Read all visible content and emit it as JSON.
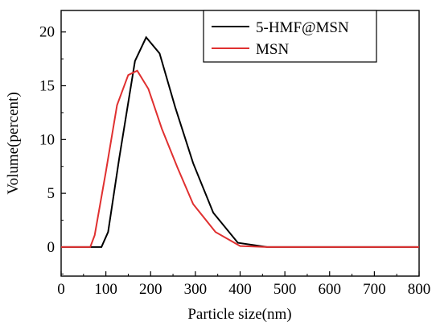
{
  "chart_data": {
    "type": "line",
    "xlabel": "Particle size(nm)",
    "ylabel": "Volume(percent)",
    "xlim": [
      0,
      800
    ],
    "ylim": [
      -2.7,
      22
    ],
    "xticks": [
      0,
      100,
      200,
      300,
      400,
      500,
      600,
      700,
      800
    ],
    "yticks": [
      0,
      5,
      10,
      15,
      20
    ],
    "grid": false,
    "legend_position": "top-right",
    "series": [
      {
        "name": "5-HMF@MSN",
        "color": "#000000",
        "x": [
          0,
          75,
          90,
          105,
          130,
          165,
          190,
          220,
          255,
          295,
          340,
          395,
          460,
          520,
          600,
          700,
          800
        ],
        "y": [
          0,
          0,
          0,
          1.4,
          8.3,
          17.3,
          19.5,
          18.0,
          13.0,
          7.8,
          3.2,
          0.4,
          0,
          0,
          0,
          0,
          0
        ]
      },
      {
        "name": "MSN",
        "color": "#e03030",
        "x": [
          0,
          65,
          75,
          100,
          125,
          150,
          170,
          195,
          225,
          260,
          295,
          345,
          400,
          460,
          520,
          600,
          700,
          800
        ],
        "y": [
          0,
          0,
          1.1,
          7.0,
          13.2,
          16.0,
          16.4,
          14.7,
          11.0,
          7.4,
          4.0,
          1.4,
          0.1,
          0,
          0,
          0,
          0,
          0
        ]
      }
    ]
  }
}
